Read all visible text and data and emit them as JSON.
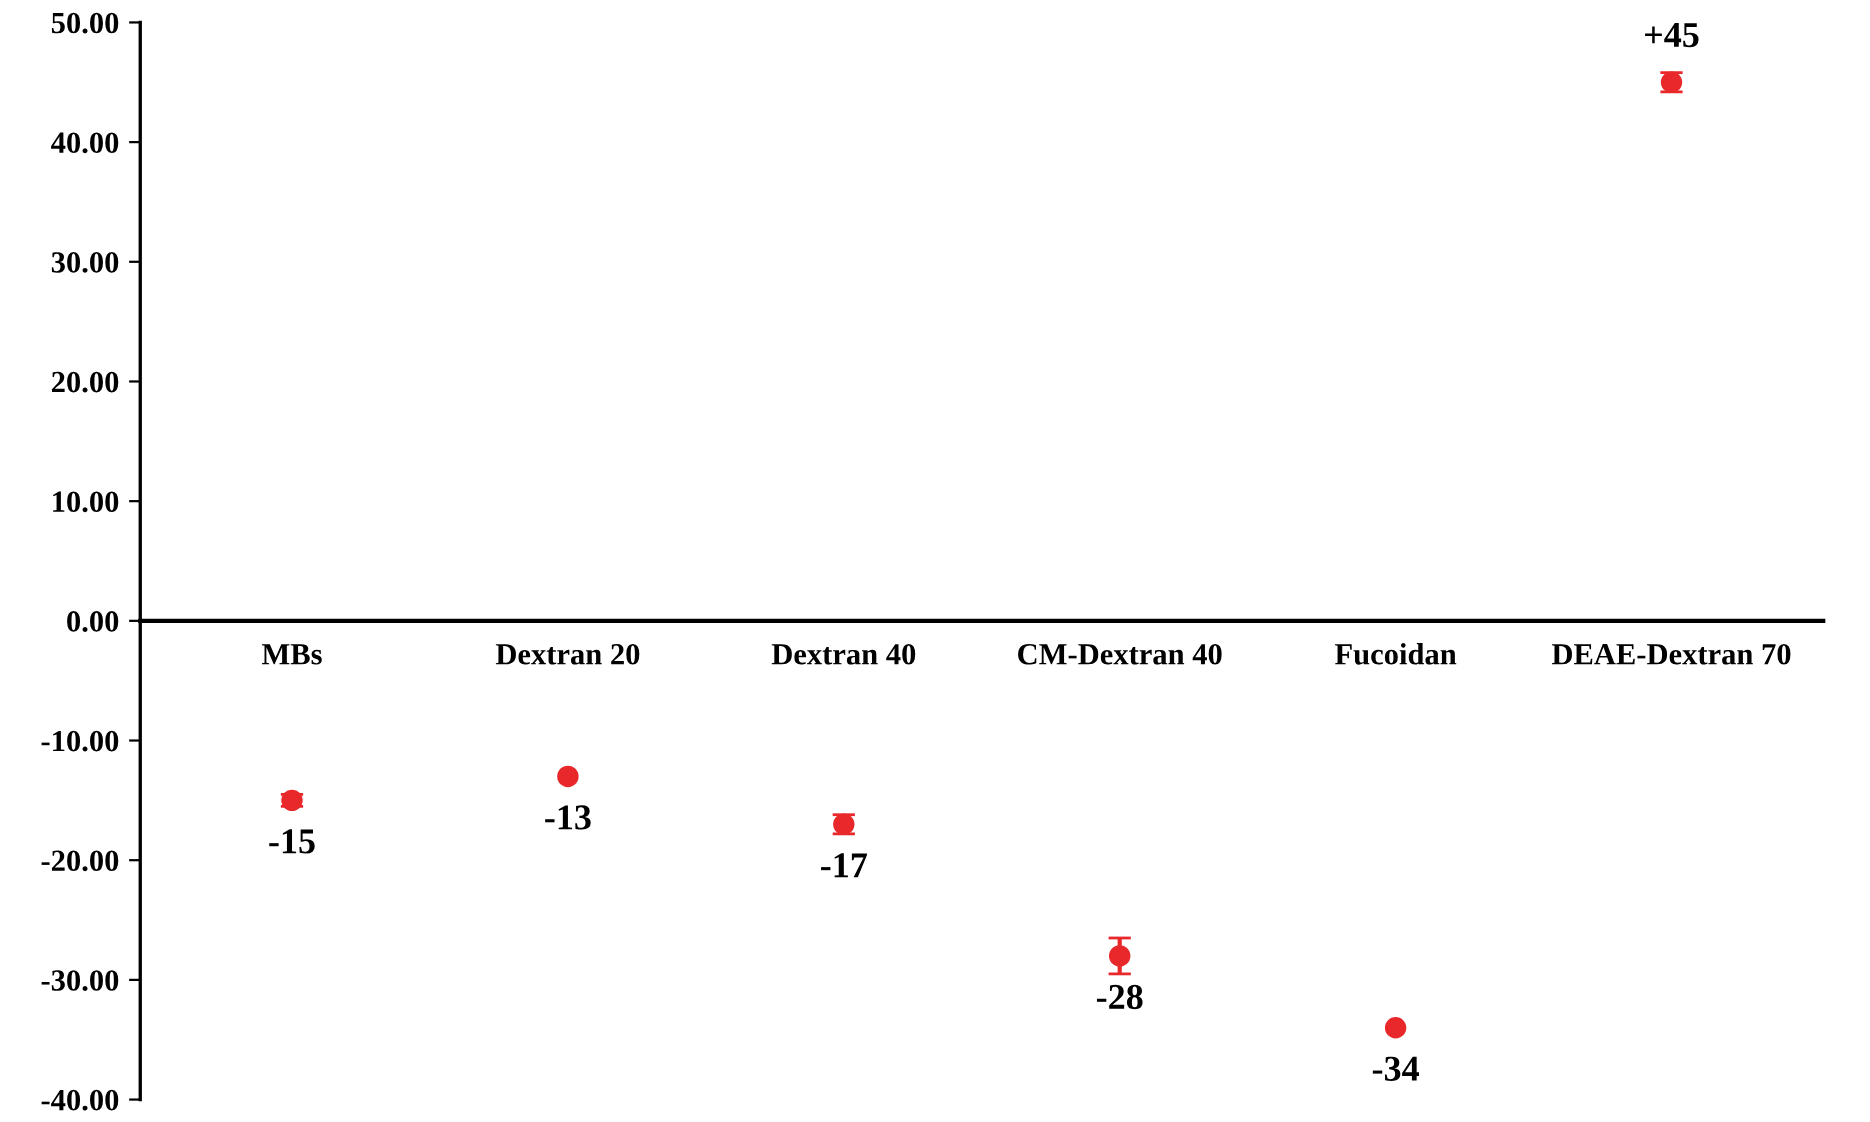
{
  "chart_data": {
    "type": "scatter",
    "categories": [
      "MBs",
      "Dextran 20",
      "Dextran 40",
      "CM-Dextran 40",
      "Fucoidan",
      "DEAE-Dextran 70"
    ],
    "values": [
      -15,
      -13,
      -17,
      -28,
      -34,
      45
    ],
    "errors": [
      0.5,
      null,
      0.8,
      1.5,
      null,
      0.8
    ],
    "value_labels": [
      "-15",
      "-13",
      "-17",
      "-28",
      "-34",
      "+45"
    ],
    "color": "#e8282a",
    "marker": "circle",
    "ylim": [
      -40,
      50
    ],
    "yticks": [
      {
        "value": 50,
        "label": "50.00"
      },
      {
        "value": 40,
        "label": "40.00"
      },
      {
        "value": 30,
        "label": "30.00"
      },
      {
        "value": 20,
        "label": "20.00"
      },
      {
        "value": 10,
        "label": "10.00"
      },
      {
        "value": 0,
        "label": "0.00"
      },
      {
        "value": -10,
        "label": "-10.00"
      },
      {
        "value": -20,
        "label": "-20.00"
      },
      {
        "value": -30,
        "label": "-30.00"
      },
      {
        "value": -40,
        "label": "-40.00"
      }
    ],
    "grid": false,
    "legend": false
  }
}
